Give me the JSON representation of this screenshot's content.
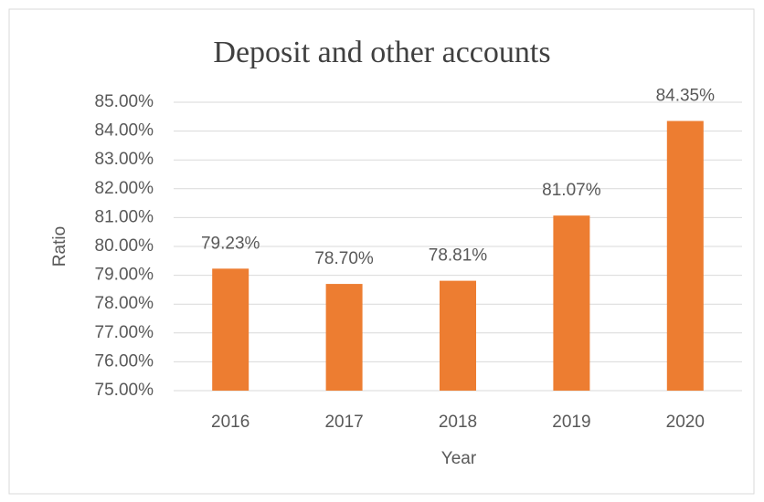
{
  "chart_data": {
    "type": "bar",
    "title": "Deposit and other accounts",
    "x_label": "Year",
    "y_label": "Ratio",
    "categories": [
      "2016",
      "2017",
      "2018",
      "2019",
      "2020"
    ],
    "values": [
      79.23,
      78.7,
      78.81,
      81.07,
      84.35
    ],
    "value_labels": [
      "79.23%",
      "78.70%",
      "78.81%",
      "81.07%",
      "84.35%"
    ],
    "color": "#ed7d31",
    "ylim": [
      75,
      85
    ],
    "yticks": [
      {
        "value": 75,
        "label": "75.00%"
      },
      {
        "value": 76,
        "label": "76.00%"
      },
      {
        "value": 77,
        "label": "77.00%"
      },
      {
        "value": 78,
        "label": "78.00%"
      },
      {
        "value": 79,
        "label": "79.00%"
      },
      {
        "value": 80,
        "label": "80.00%"
      },
      {
        "value": 81,
        "label": "81.00%"
      },
      {
        "value": 82,
        "label": "82.00%"
      },
      {
        "value": 83,
        "label": "83.00%"
      },
      {
        "value": 84,
        "label": "84.00%"
      },
      {
        "value": 85,
        "label": "85.00%"
      }
    ],
    "grid": true
  }
}
